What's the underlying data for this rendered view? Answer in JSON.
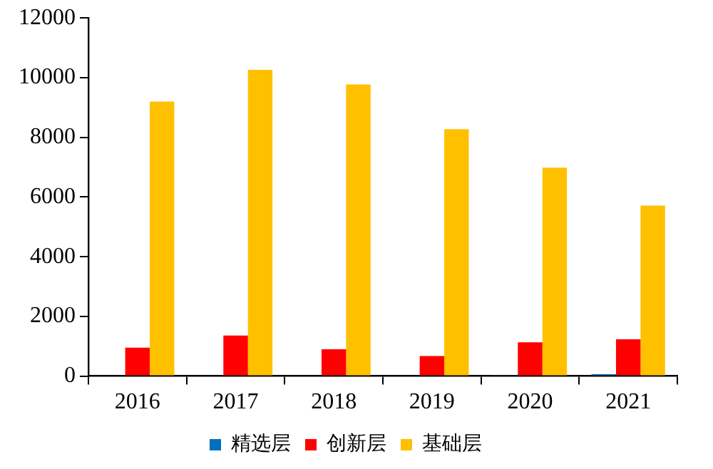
{
  "chart_data": {
    "type": "bar",
    "categories": [
      "2016",
      "2017",
      "2018",
      "2019",
      "2020",
      "2021"
    ],
    "series": [
      {
        "name": "精选层",
        "color": "#0070c0",
        "values": [
          0,
          0,
          0,
          0,
          30,
          60
        ]
      },
      {
        "name": "创新层",
        "color": "#ff0000",
        "values": [
          950,
          1360,
          900,
          670,
          1130,
          1230
        ]
      },
      {
        "name": "基础层",
        "color": "#ffc000",
        "values": [
          9200,
          10260,
          9770,
          8270,
          6980,
          5710
        ]
      }
    ],
    "ylim": [
      0,
      12000
    ],
    "yticks": [
      0,
      2000,
      4000,
      6000,
      8000,
      10000,
      12000
    ],
    "grid": false,
    "legend": "bottom"
  }
}
